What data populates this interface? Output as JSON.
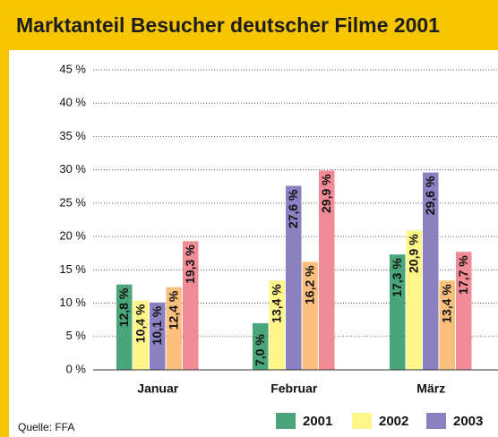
{
  "chart_data": {
    "type": "bar",
    "title": "Marktanteil Besucher deutscher Filme 2001",
    "categories": [
      "Januar",
      "Februar",
      "März"
    ],
    "series": [
      {
        "name": "2001",
        "color": "#4aa57a",
        "values": [
          12.8,
          7.0,
          17.3
        ],
        "value_labels": [
          "12,8 %",
          "7,0 %",
          "17,3 %"
        ]
      },
      {
        "name": "2002",
        "color": "#fff68a",
        "values": [
          10.4,
          13.4,
          20.9
        ],
        "value_labels": [
          "10,4 %",
          "13,4 %",
          "20,9 %"
        ]
      },
      {
        "name": "2003",
        "color": "#8a82c0",
        "values": [
          10.1,
          27.6,
          29.6
        ],
        "value_labels": [
          "10,1 %",
          "27,6 %",
          "29,6 %"
        ]
      },
      {
        "color": "#fbbf7e",
        "values": [
          12.4,
          16.2,
          13.4
        ],
        "value_labels": [
          "12,4 %",
          "16,2 %",
          "13,4 %"
        ]
      },
      {
        "color": "#f18c96",
        "values": [
          19.3,
          29.9,
          17.7
        ],
        "value_labels": [
          "19,3 %",
          "29,9 %",
          "17,7 %"
        ]
      }
    ],
    "ylim": [
      0,
      45
    ],
    "yticks": [
      {
        "value": 0,
        "label": "0 %"
      },
      {
        "value": 5,
        "label": "5 %"
      },
      {
        "value": 10,
        "label": "10 %"
      },
      {
        "value": 15,
        "label": "15 %"
      },
      {
        "value": 20,
        "label": "20 %"
      },
      {
        "value": 25,
        "label": "25 %"
      },
      {
        "value": 30,
        "label": "30 %"
      },
      {
        "value": 35,
        "label": "35 %"
      },
      {
        "value": 40,
        "label": "40 %"
      },
      {
        "value": 45,
        "label": "45 %"
      }
    ],
    "grid": true,
    "source": "Quelle: FFA"
  }
}
